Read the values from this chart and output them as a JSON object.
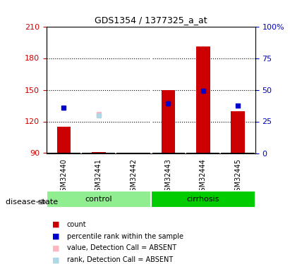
{
  "title": "GDS1354 / 1377325_a_at",
  "samples": [
    "GSM32440",
    "GSM32441",
    "GSM32442",
    "GSM32443",
    "GSM32444",
    "GSM32445"
  ],
  "groups": [
    {
      "name": "control",
      "indices": [
        0,
        1,
        2
      ],
      "color": "#90EE90"
    },
    {
      "name": "cirrhosis",
      "indices": [
        3,
        4,
        5
      ],
      "color": "#00CC00"
    }
  ],
  "bar_bottom": 90,
  "bar_values": [
    115,
    91,
    null,
    150,
    191,
    130
  ],
  "bar_color": "#CC0000",
  "blue_dot_values": [
    133,
    null,
    null,
    137,
    149,
    135
  ],
  "blue_dot_color": "#0000CC",
  "absent_value_dot": [
    null,
    127,
    null,
    null,
    null,
    null
  ],
  "absent_value_color": "#FFB6C1",
  "absent_rank_dot": [
    null,
    126,
    null,
    null,
    null,
    null
  ],
  "absent_rank_color": "#ADD8E6",
  "ylim_left": [
    90,
    210
  ],
  "ylim_right": [
    0,
    100
  ],
  "yticks_left": [
    90,
    120,
    150,
    180,
    210
  ],
  "yticks_right": [
    0,
    25,
    50,
    75,
    100
  ],
  "ytick_labels_right": [
    "0",
    "25",
    "50",
    "75",
    "100%"
  ],
  "bar_width": 0.4,
  "disease_state_label": "disease state",
  "legend_items": [
    {
      "label": "count",
      "color": "#CC0000",
      "marker": "s",
      "absent": false
    },
    {
      "label": "percentile rank within the sample",
      "color": "#0000CC",
      "marker": "s",
      "absent": false
    },
    {
      "label": "value, Detection Call = ABSENT",
      "color": "#FFB6C1",
      "marker": "s",
      "absent": true
    },
    {
      "label": "rank, Detection Call = ABSENT",
      "color": "#ADD8E6",
      "marker": "s",
      "absent": true
    }
  ],
  "grid_color": "#000000",
  "bg_color": "#FFFFFF",
  "panel_bg": "#F0F0F0"
}
